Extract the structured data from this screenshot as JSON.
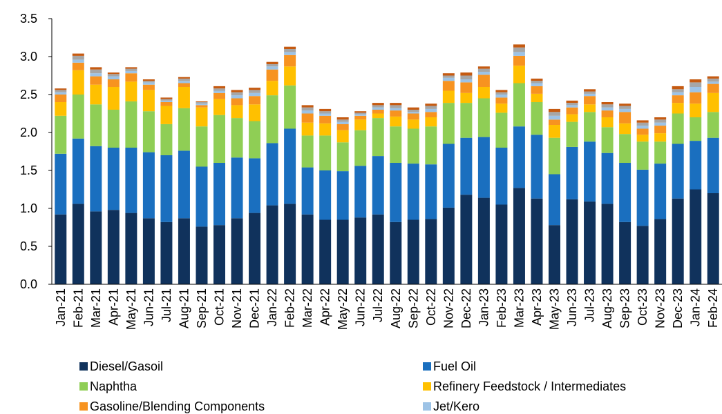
{
  "chart_data": {
    "type": "stacked_bar",
    "categories": [
      "Jan-21",
      "Feb-21",
      "Mar-21",
      "Apr-21",
      "May-21",
      "Jun-21",
      "Jul-21",
      "Aug-21",
      "Sep-21",
      "Oct-21",
      "Nov-21",
      "Dec-21",
      "Jan-22",
      "Feb-22",
      "Mar-22",
      "Apr-22",
      "May-22",
      "Jun-22",
      "Jul-22",
      "Aug-22",
      "Sep-22",
      "Oct-22",
      "Nov-22",
      "Dec-22",
      "Jan-23",
      "Feb-23",
      "Mar-23",
      "Apr-23",
      "May-23",
      "Jun-23",
      "Jul-23",
      "Aug-23",
      "Sep-23",
      "Oct-23",
      "Nov-23",
      "Dec-23",
      "Jan-24",
      "Feb-24"
    ],
    "series": [
      {
        "name": "Diesel/Gasoil",
        "color": "#10325c",
        "values": [
          0.92,
          1.06,
          0.96,
          0.98,
          0.94,
          0.87,
          0.82,
          0.87,
          0.76,
          0.78,
          0.87,
          0.94,
          1.04,
          1.06,
          0.92,
          0.85,
          0.85,
          0.88,
          0.92,
          0.82,
          0.85,
          0.86,
          1.01,
          1.18,
          1.14,
          1.05,
          1.27,
          1.13,
          0.78,
          1.12,
          1.09,
          1.06,
          0.82,
          0.77,
          0.86,
          1.13,
          1.25,
          1.2
        ]
      },
      {
        "name": "Fuel Oil",
        "color": "#1a6fbf",
        "values": [
          0.8,
          0.86,
          0.86,
          0.82,
          0.86,
          0.87,
          0.88,
          0.89,
          0.79,
          0.82,
          0.8,
          0.72,
          0.82,
          0.99,
          0.62,
          0.65,
          0.64,
          0.68,
          0.77,
          0.78,
          0.74,
          0.72,
          0.84,
          0.75,
          0.8,
          0.75,
          0.81,
          0.84,
          0.67,
          0.69,
          0.79,
          0.67,
          0.78,
          0.74,
          0.73,
          0.72,
          0.64,
          0.73
        ]
      },
      {
        "name": "Naphtha",
        "color": "#8fce55",
        "values": [
          0.5,
          0.58,
          0.55,
          0.5,
          0.61,
          0.54,
          0.41,
          0.56,
          0.53,
          0.63,
          0.52,
          0.49,
          0.63,
          0.57,
          0.42,
          0.46,
          0.38,
          0.47,
          0.5,
          0.48,
          0.46,
          0.5,
          0.54,
          0.46,
          0.51,
          0.46,
          0.57,
          0.43,
          0.48,
          0.33,
          0.39,
          0.34,
          0.38,
          0.37,
          0.29,
          0.4,
          0.31,
          0.34
        ]
      },
      {
        "name": "Refinery Feedstock / Intermediates",
        "color": "#ffc000",
        "values": [
          0.18,
          0.32,
          0.26,
          0.3,
          0.26,
          0.28,
          0.24,
          0.28,
          0.25,
          0.21,
          0.17,
          0.22,
          0.19,
          0.25,
          0.17,
          0.16,
          0.16,
          0.14,
          0.06,
          0.13,
          0.12,
          0.12,
          0.16,
          0.13,
          0.15,
          0.12,
          0.23,
          0.11,
          0.17,
          0.1,
          0.1,
          0.13,
          0.14,
          0.09,
          0.11,
          0.14,
          0.18,
          0.25
        ]
      },
      {
        "name": "Gasoline/Blending Components",
        "color": "#f79320",
        "values": [
          0.1,
          0.1,
          0.11,
          0.1,
          0.11,
          0.07,
          0.05,
          0.05,
          0.03,
          0.08,
          0.09,
          0.11,
          0.15,
          0.15,
          0.12,
          0.1,
          0.08,
          0.05,
          0.05,
          0.08,
          0.08,
          0.07,
          0.13,
          0.14,
          0.16,
          0.08,
          0.13,
          0.1,
          0.07,
          0.09,
          0.11,
          0.09,
          0.15,
          0.08,
          0.1,
          0.1,
          0.15,
          0.12
        ]
      },
      {
        "name": "Jet/Kero",
        "color": "#9dc3e6",
        "values": [
          0.03,
          0.04,
          0.04,
          0.04,
          0.03,
          0.03,
          0.02,
          0.03,
          0.02,
          0.03,
          0.04,
          0.04,
          0.04,
          0.04,
          0.04,
          0.03,
          0.03,
          0.02,
          0.03,
          0.03,
          0.02,
          0.04,
          0.04,
          0.04,
          0.04,
          0.04,
          0.05,
          0.04,
          0.05,
          0.03,
          0.03,
          0.04,
          0.04,
          0.04,
          0.04,
          0.04,
          0.07,
          0.03
        ]
      },
      {
        "name": null,
        "color": "#a6a6a6",
        "values": [
          0.03,
          0.05,
          0.05,
          0.03,
          0.03,
          0.02,
          0.02,
          0.03,
          0.02,
          0.03,
          0.04,
          0.04,
          0.03,
          0.04,
          0.04,
          0.03,
          0.03,
          0.02,
          0.03,
          0.04,
          0.03,
          0.04,
          0.03,
          0.05,
          0.04,
          0.03,
          0.06,
          0.03,
          0.05,
          0.03,
          0.03,
          0.04,
          0.04,
          0.04,
          0.04,
          0.04,
          0.06,
          0.04
        ]
      },
      {
        "name": null,
        "color": "#c55a11",
        "values": [
          0.02,
          0.03,
          0.03,
          0.02,
          0.02,
          0.02,
          0.02,
          0.02,
          0.01,
          0.03,
          0.03,
          0.03,
          0.03,
          0.03,
          0.03,
          0.03,
          0.03,
          0.02,
          0.03,
          0.03,
          0.03,
          0.03,
          0.03,
          0.04,
          0.03,
          0.03,
          0.04,
          0.03,
          0.04,
          0.03,
          0.03,
          0.03,
          0.03,
          0.03,
          0.03,
          0.04,
          0.04,
          0.03
        ]
      }
    ],
    "ylim": [
      0,
      3.5
    ],
    "yticks": [
      {
        "value": 0,
        "label": "0.0"
      },
      0.5,
      {
        "value": 1,
        "label": "1.0"
      },
      1.5,
      {
        "value": 2,
        "label": "2.0"
      },
      2.5,
      {
        "value": 3,
        "label": "3.0"
      },
      3.5
    ],
    "grid": false
  }
}
